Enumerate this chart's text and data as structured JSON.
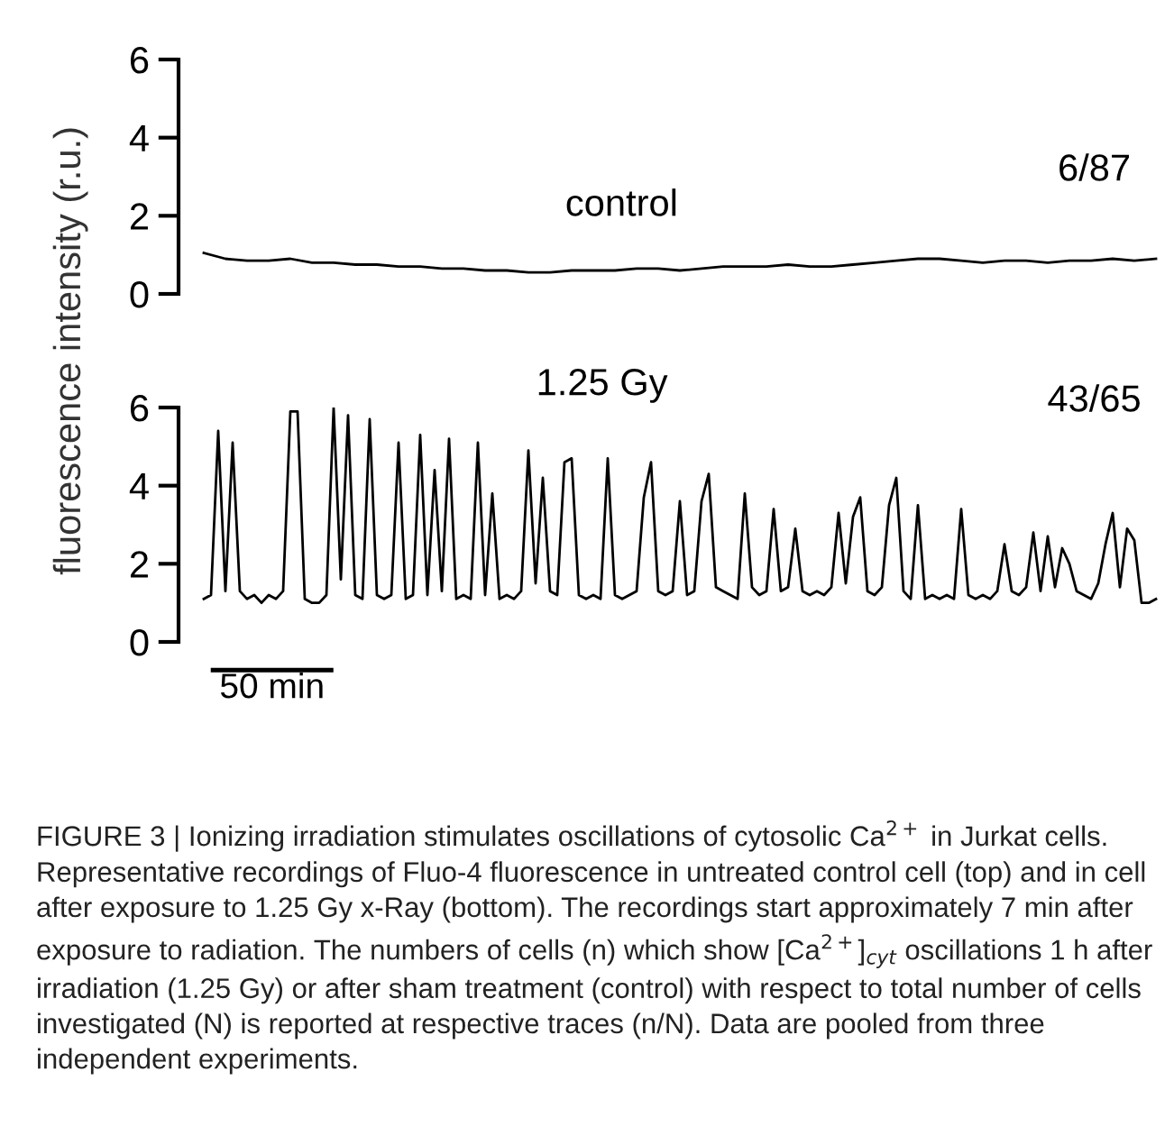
{
  "chart_data": [
    {
      "type": "line",
      "ylabel": "fluorescence intensity (r.u.)",
      "ylim": [
        0,
        6
      ],
      "yticks": [
        0,
        2,
        4,
        6
      ],
      "tick_labels": "y",
      "categories": [
        null,
        null,
        null,
        null,
        null,
        null,
        null,
        null,
        null,
        null,
        null,
        null,
        null,
        null,
        null,
        null,
        null,
        null,
        null,
        null,
        null,
        null,
        null,
        null,
        null,
        null,
        null,
        null,
        null,
        null,
        null,
        null,
        null,
        null,
        null,
        null,
        null,
        null,
        null,
        null,
        null,
        null,
        null,
        null,
        null
      ],
      "series": [
        {
          "color": "#000000",
          "values": [
            1.05,
            0.9,
            0.85,
            0.85,
            0.9,
            0.8,
            0.8,
            0.75,
            0.75,
            0.7,
            0.7,
            0.65,
            0.65,
            0.6,
            0.6,
            0.55,
            0.55,
            0.6,
            0.6,
            0.6,
            0.65,
            0.65,
            0.6,
            0.65,
            0.7,
            0.7,
            0.7,
            0.75,
            0.7,
            0.7,
            0.75,
            0.8,
            0.85,
            0.9,
            0.9,
            0.85,
            0.8,
            0.85,
            0.85,
            0.8,
            0.85,
            0.85,
            0.9,
            0.85,
            0.9
          ]
        }
      ],
      "annotations": [
        "control",
        "6/87"
      ]
    },
    {
      "type": "line",
      "ylim": [
        0,
        6
      ],
      "yticks": [
        0,
        2,
        4,
        6
      ],
      "tick_labels": "y",
      "categories": [
        null,
        null,
        null,
        null,
        null,
        null,
        null,
        null,
        null,
        null,
        null,
        null,
        null,
        null,
        null,
        null,
        null,
        null,
        null,
        null,
        null,
        null,
        null,
        null,
        null,
        null,
        null,
        null,
        null,
        null,
        null,
        null,
        null,
        null,
        null,
        null,
        null,
        null,
        null,
        null,
        null,
        null,
        null,
        null,
        null,
        null,
        null,
        null,
        null,
        null,
        null,
        null,
        null,
        null,
        null,
        null,
        null,
        null,
        null,
        null,
        null,
        null,
        null,
        null,
        null,
        null,
        null,
        null,
        null,
        null,
        null,
        null,
        null,
        null,
        null,
        null,
        null,
        null,
        null,
        null,
        null,
        null,
        null,
        null,
        null,
        null,
        null,
        null,
        null,
        null,
        null,
        null,
        null,
        null,
        null,
        null,
        null,
        null,
        null,
        null,
        null,
        null,
        null,
        null,
        null,
        null,
        null,
        null,
        null,
        null,
        null,
        null,
        null,
        null,
        null,
        null,
        null,
        null,
        null,
        null,
        null,
        null,
        null,
        null,
        null,
        null,
        null,
        null,
        null,
        null,
        null,
        null,
        null
      ],
      "series": [
        {
          "color": "#000000",
          "values": [
            1.1,
            1.2,
            5.4,
            1.3,
            5.1,
            1.3,
            1.1,
            1.2,
            1.0,
            1.2,
            1.1,
            1.3,
            5.9,
            5.9,
            1.1,
            1.0,
            1.0,
            1.2,
            6.0,
            1.6,
            5.8,
            1.2,
            1.1,
            5.7,
            1.2,
            1.1,
            1.2,
            5.1,
            1.1,
            1.2,
            5.3,
            1.2,
            4.4,
            1.3,
            5.2,
            1.1,
            1.2,
            1.1,
            5.1,
            1.2,
            3.8,
            1.1,
            1.2,
            1.1,
            1.3,
            4.9,
            1.5,
            4.2,
            1.3,
            1.2,
            4.6,
            4.7,
            1.2,
            1.1,
            1.2,
            1.1,
            4.7,
            1.2,
            1.1,
            1.2,
            1.3,
            3.7,
            4.6,
            1.3,
            1.2,
            1.3,
            3.6,
            1.2,
            1.3,
            3.6,
            4.3,
            1.4,
            1.3,
            1.2,
            1.1,
            3.8,
            1.4,
            1.2,
            1.3,
            3.4,
            1.3,
            1.4,
            2.9,
            1.3,
            1.2,
            1.3,
            1.2,
            1.4,
            3.3,
            1.5,
            3.2,
            3.7,
            1.3,
            1.2,
            1.4,
            3.5,
            4.2,
            1.3,
            1.1,
            3.5,
            1.1,
            1.2,
            1.1,
            1.2,
            1.1,
            3.4,
            1.2,
            1.1,
            1.2,
            1.1,
            1.3,
            2.5,
            1.3,
            1.2,
            1.4,
            2.8,
            1.3,
            2.7,
            1.4,
            2.4,
            2.0,
            1.3,
            1.2,
            1.1,
            1.5,
            2.5,
            3.3,
            1.4,
            2.9,
            2.6,
            1.0,
            1.0,
            1.1
          ]
        }
      ],
      "annotations": [
        "1.25 Gy",
        "43/65",
        "50 min",
        "FIGURE 3 | Ionizing irradiation stimulates oscillations of cytosolic Ca$^{2+}$ in Jurkat cells. Representative recordings of Fluo-4 fluorescence in untreated control cell (top) and in cell after exposure to 1.25 Gy x-Ray (bottom). The recordings start approximately 7 min after exposure to radiation. The numbers of cells (n) which show [Ca$^{2+}$]$_{cyt}$ oscillations 1 h after irradiation (1.25 Gy) or after sham treatment (control) with respect to total number of cells investigated (N) is reported at respective traces (n/N). Data are pooled from three independent experiments."
      ]
    }
  ]
}
